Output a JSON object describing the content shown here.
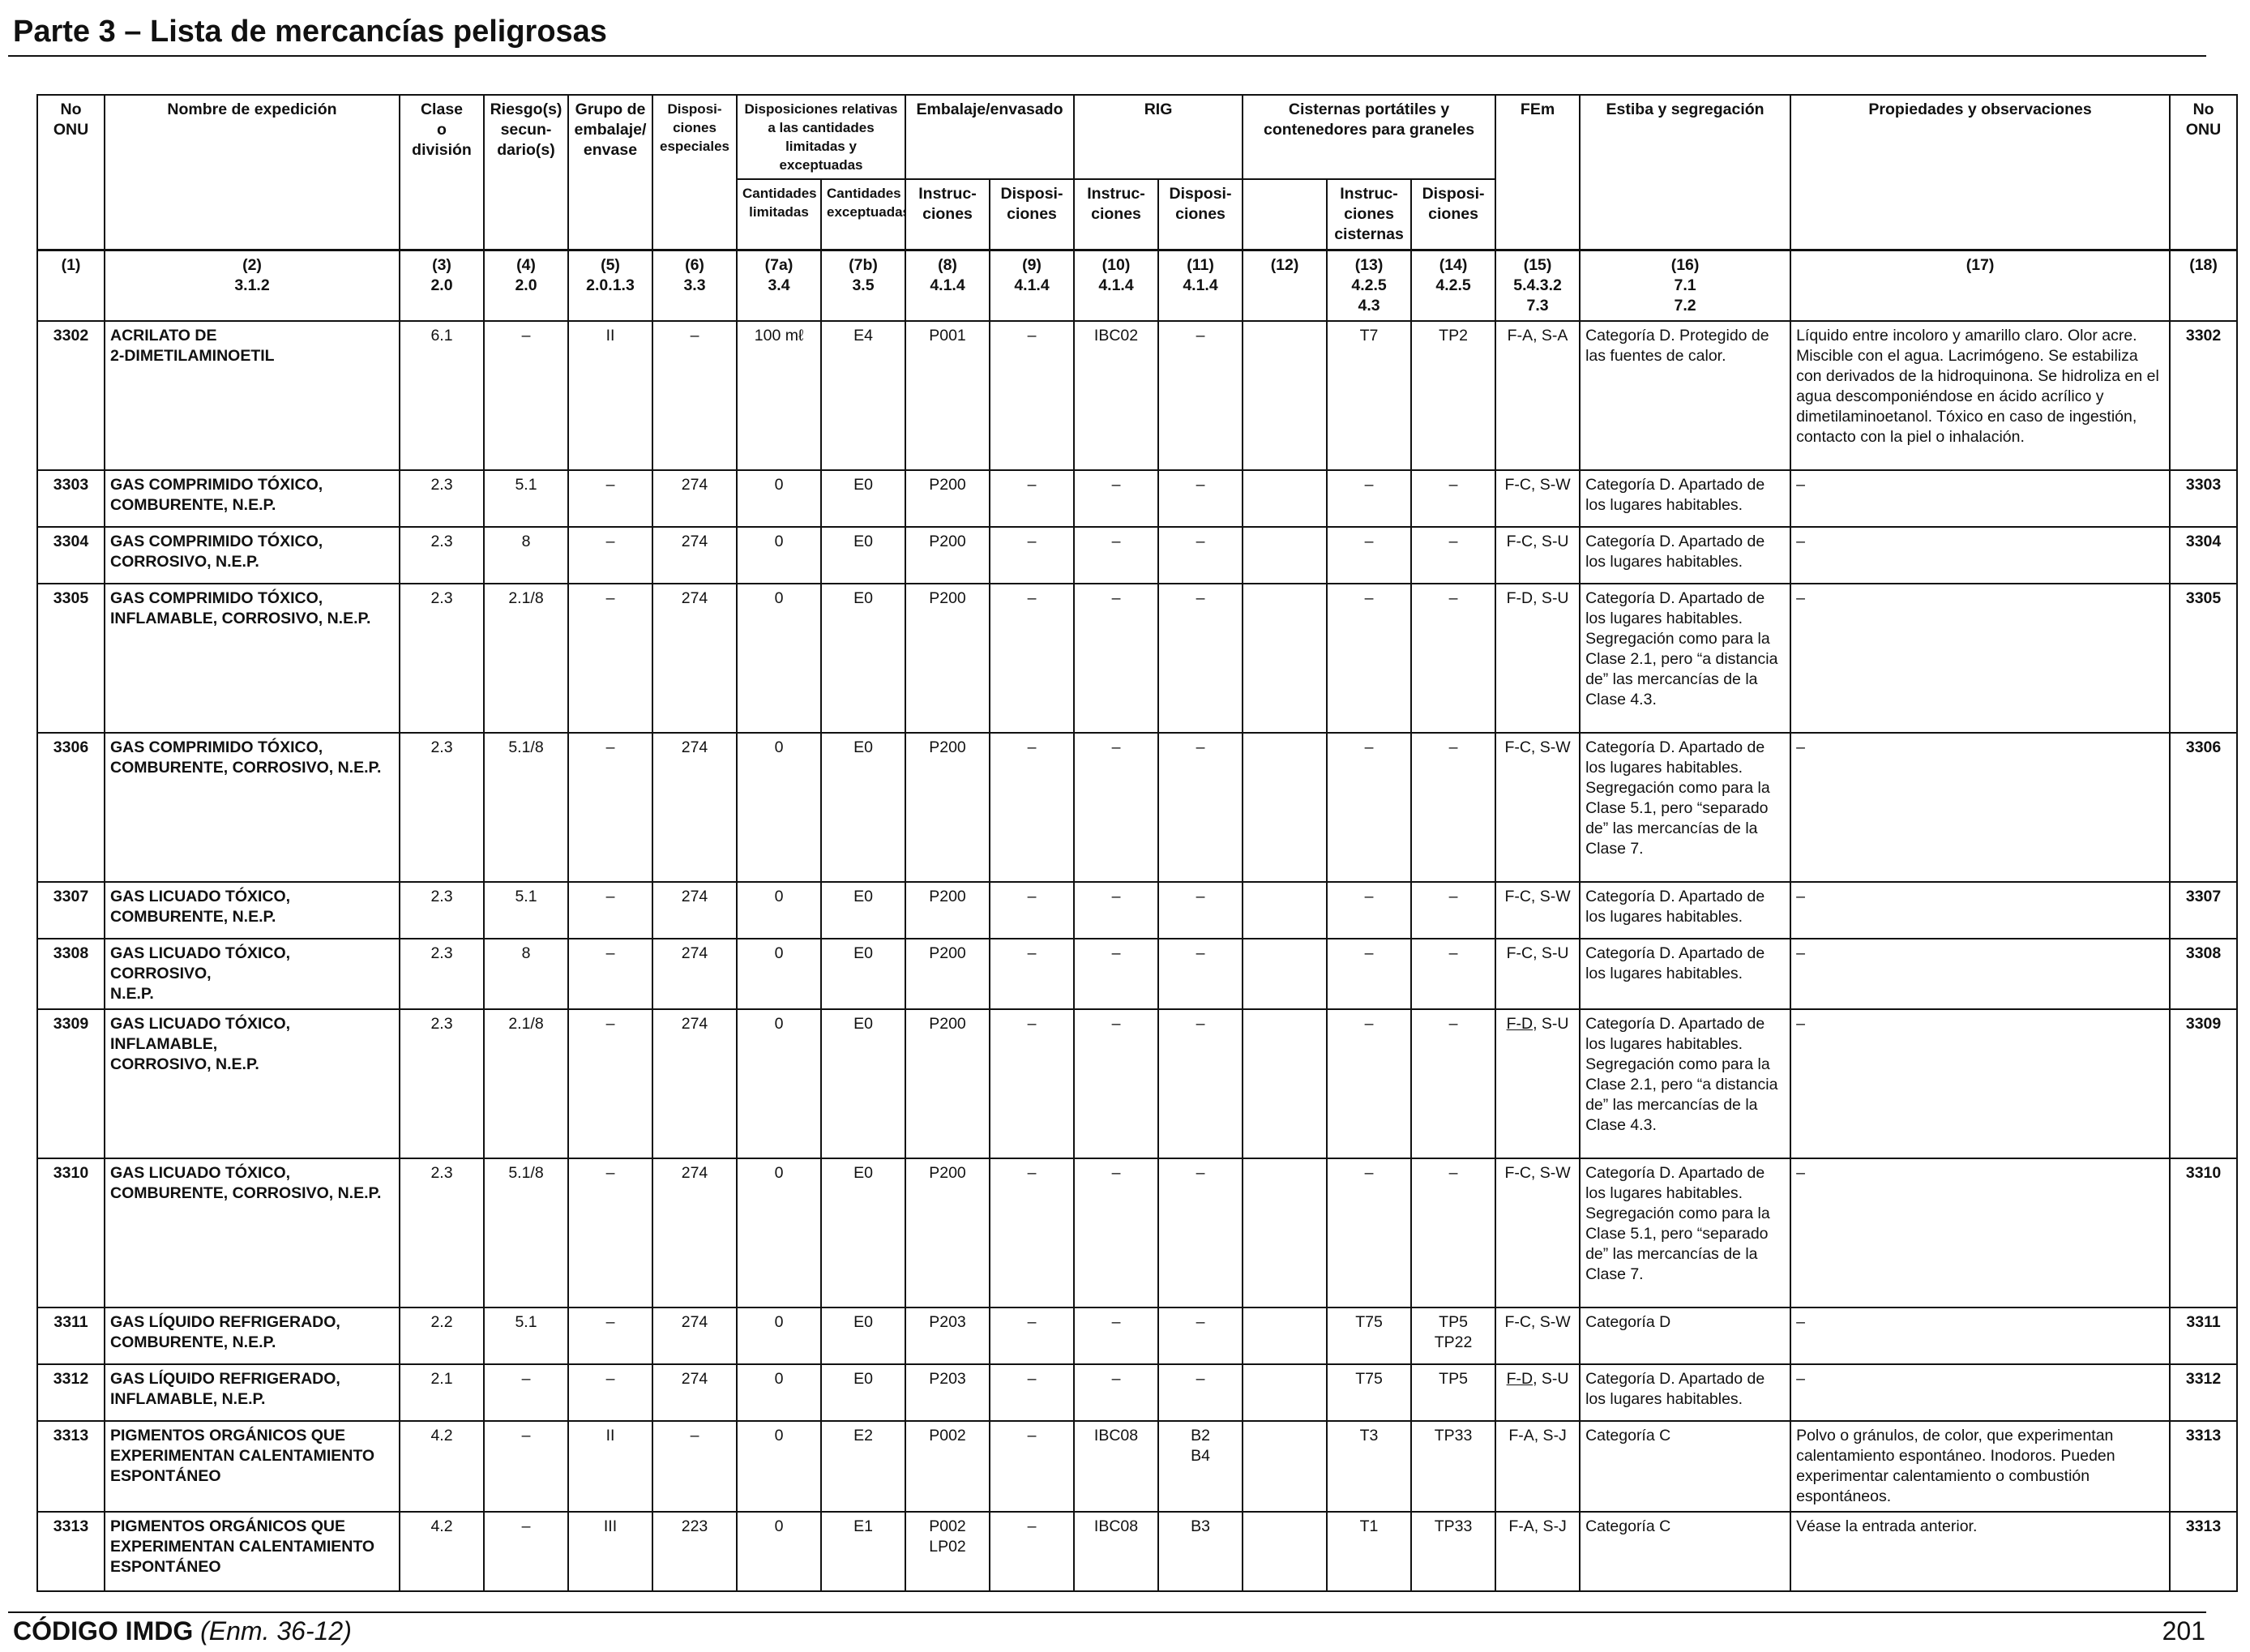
{
  "page_title": "Parte 3 – Lista de mercancías peligrosas",
  "header": {
    "no_onu": "No\nONU",
    "nombre": "Nombre de expedición",
    "clase": "Clase\no\ndivisión",
    "riesgo": "Riesgo(s)\nsecun-\ndario(s)",
    "grupo": "Grupo de\nembalaje/\nenvase",
    "dispo_esp": "Disposi-\nciones\nespeciales",
    "dispo_rel": "Disposiciones relativas\na las cantidades\nlimitadas y exceptuadas",
    "embalaje": "Embalaje/envasado",
    "rig": "RIG",
    "cisternas": "Cisternas portátiles y\ncontenedores para graneles",
    "fem": "FEm",
    "estiba": "Estiba y segregación",
    "propiedades": "Propiedades y observaciones",
    "no_onu_right": "No\nONU",
    "cant_lim": "Cantidades\nlimitadas",
    "cant_exc": "Cantidades\nexceptuadas",
    "emb_instr": "Instruc-\nciones",
    "emb_dispo": "Disposi-\nciones",
    "rig_instr": "Instruc-\nciones",
    "rig_dispo": "Disposi-\nciones",
    "cis_instr": "Instruc-\nciones\ncisternas",
    "cis_dispo": "Disposi-\nciones"
  },
  "column_numbers": [
    "(1)",
    "(2)\n3.1.2",
    "(3)\n2.0",
    "(4)\n2.0",
    "(5)\n2.0.1.3",
    "(6)\n3.3",
    "(7a)\n3.4",
    "(7b)\n3.5",
    "(8)\n4.1.4",
    "(9)\n4.1.4",
    "(10)\n4.1.4",
    "(11)\n4.1.4",
    "(12)",
    "(13)\n4.2.5\n4.3",
    "(14)\n4.2.5",
    "(15)\n5.4.3.2\n7.3",
    "(16)\n7.1\n7.2",
    "(17)",
    "(18)"
  ],
  "rows": [
    {
      "no": "3302",
      "name": "ACRILATO DE\n2-DIMETILAMINOETIL",
      "clase": "6.1",
      "riesgo": "–",
      "grupo": "II",
      "dispo": "–",
      "c7a": "100 mℓ",
      "c7b": "E4",
      "c8": "P001",
      "c9": "–",
      "c10": "IBC02",
      "c11": "–",
      "c12": "",
      "c13": "T7",
      "c14": "TP2",
      "fem": "F-A, S-A",
      "estiba": "Categoría D. Protegido de las fuentes de calor.",
      "prop": "Líquido entre incoloro y amarillo claro. Olor acre. Miscible con el agua. Lacrimógeno. Se estabiliza con derivados de la hidroquinona. Se hidroliza en el agua descomponiéndose en ácido acrílico y dimetilaminoetanol. Tóxico en caso de ingestión, contacto con la piel o inhalación.",
      "no2": "3302"
    },
    {
      "no": "3303",
      "name": "GAS COMPRIMIDO TÓXICO,\nCOMBURENTE, N.E.P.",
      "clase": "2.3",
      "riesgo": "5.1",
      "grupo": "–",
      "dispo": "274",
      "c7a": "0",
      "c7b": "E0",
      "c8": "P200",
      "c9": "–",
      "c10": "–",
      "c11": "–",
      "c12": "",
      "c13": "–",
      "c14": "–",
      "fem": "F-C, S-W",
      "estiba": "Categoría D. Apartado de los lugares habitables.",
      "prop": "–",
      "no2": "3303"
    },
    {
      "no": "3304",
      "name": "GAS COMPRIMIDO TÓXICO,\nCORROSIVO, N.E.P.",
      "clase": "2.3",
      "riesgo": "8",
      "grupo": "–",
      "dispo": "274",
      "c7a": "0",
      "c7b": "E0",
      "c8": "P200",
      "c9": "–",
      "c10": "–",
      "c11": "–",
      "c12": "",
      "c13": "–",
      "c14": "–",
      "fem": "F-C, S-U",
      "estiba": "Categoría D. Apartado de los lugares habitables.",
      "prop": "–",
      "no2": "3304"
    },
    {
      "no": "3305",
      "name": "GAS COMPRIMIDO TÓXICO,\nINFLAMABLE, CORROSIVO, N.E.P.",
      "clase": "2.3",
      "riesgo": "2.1/8",
      "grupo": "–",
      "dispo": "274",
      "c7a": "0",
      "c7b": "E0",
      "c8": "P200",
      "c9": "–",
      "c10": "–",
      "c11": "–",
      "c12": "",
      "c13": "–",
      "c14": "–",
      "fem": "F-D, S-U",
      "estiba": "Categoría D. Apartado de los lugares habitables. Segregación como para la Clase 2.1, pero “a distancia de” las mercancías de la Clase 4.3.",
      "prop": "–",
      "no2": "3305"
    },
    {
      "no": "3306",
      "name": "GAS COMPRIMIDO TÓXICO,\nCOMBURENTE, CORROSIVO, N.E.P.",
      "clase": "2.3",
      "riesgo": "5.1/8",
      "grupo": "–",
      "dispo": "274",
      "c7a": "0",
      "c7b": "E0",
      "c8": "P200",
      "c9": "–",
      "c10": "–",
      "c11": "–",
      "c12": "",
      "c13": "–",
      "c14": "–",
      "fem": "F-C, S-W",
      "estiba": "Categoría D. Apartado de los lugares habitables. Segregación como para la Clase 5.1, pero “separado de” las mercancías de la Clase 7.",
      "prop": "–",
      "no2": "3306"
    },
    {
      "no": "3307",
      "name": "GAS LICUADO TÓXICO,\nCOMBURENTE, N.E.P.",
      "clase": "2.3",
      "riesgo": "5.1",
      "grupo": "–",
      "dispo": "274",
      "c7a": "0",
      "c7b": "E0",
      "c8": "P200",
      "c9": "–",
      "c10": "–",
      "c11": "–",
      "c12": "",
      "c13": "–",
      "c14": "–",
      "fem": "F-C, S-W",
      "estiba": "Categoría D. Apartado de los lugares habitables.",
      "prop": "–",
      "no2": "3307"
    },
    {
      "no": "3308",
      "name": "GAS LICUADO TÓXICO, CORROSIVO,\nN.E.P.",
      "clase": "2.3",
      "riesgo": "8",
      "grupo": "–",
      "dispo": "274",
      "c7a": "0",
      "c7b": "E0",
      "c8": "P200",
      "c9": "–",
      "c10": "–",
      "c11": "–",
      "c12": "",
      "c13": "–",
      "c14": "–",
      "fem": "F-C, S-U",
      "estiba": "Categoría D. Apartado de los lugares habitables.",
      "prop": "–",
      "no2": "3308"
    },
    {
      "no": "3309",
      "name": "GAS LICUADO TÓXICO, INFLAMABLE,\nCORROSIVO, N.E.P.",
      "clase": "2.3",
      "riesgo": "2.1/8",
      "grupo": "–",
      "dispo": "274",
      "c7a": "0",
      "c7b": "E0",
      "c8": "P200",
      "c9": "–",
      "c10": "–",
      "c11": "–",
      "c12": "",
      "c13": "–",
      "c14": "–",
      "fem_u": "F-D",
      "fem_rest": ", S-U",
      "estiba": "Categoría D. Apartado de los lugares habitables. Segregación como para la Clase 2.1, pero “a distancia de” las mercancías de la Clase 4.3.",
      "prop": "–",
      "no2": "3309"
    },
    {
      "no": "3310",
      "name": "GAS LICUADO TÓXICO,\nCOMBURENTE, CORROSIVO, N.E.P.",
      "clase": "2.3",
      "riesgo": "5.1/8",
      "grupo": "–",
      "dispo": "274",
      "c7a": "0",
      "c7b": "E0",
      "c8": "P200",
      "c9": "–",
      "c10": "–",
      "c11": "–",
      "c12": "",
      "c13": "–",
      "c14": "–",
      "fem": "F-C, S-W",
      "estiba": "Categoría D. Apartado de los lugares habitables. Segregación como para la Clase 5.1, pero “separado de” las mercancías de la Clase 7.",
      "prop": "–",
      "no2": "3310"
    },
    {
      "no": "3311",
      "name": "GAS LÍQUIDO REFRIGERADO,\nCOMBURENTE, N.E.P.",
      "clase": "2.2",
      "riesgo": "5.1",
      "grupo": "–",
      "dispo": "274",
      "c7a": "0",
      "c7b": "E0",
      "c8": "P203",
      "c9": "–",
      "c10": "–",
      "c11": "–",
      "c12": "",
      "c13": "T75",
      "c14": "TP5\nTP22",
      "fem": "F-C, S-W",
      "estiba": "Categoría D",
      "prop": "–",
      "no2": "3311"
    },
    {
      "no": "3312",
      "name": "GAS LÍQUIDO REFRIGERADO,\nINFLAMABLE, N.E.P.",
      "clase": "2.1",
      "riesgo": "–",
      "grupo": "–",
      "dispo": "274",
      "c7a": "0",
      "c7b": "E0",
      "c8": "P203",
      "c9": "–",
      "c10": "–",
      "c11": "–",
      "c12": "",
      "c13": "T75",
      "c14": "TP5",
      "fem_u": "F-D",
      "fem_rest": ", S-U",
      "estiba": "Categoría D. Apartado de los lugares habitables.",
      "prop": "–",
      "no2": "3312"
    },
    {
      "no": "3313",
      "name": "PIGMENTOS ORGÁNICOS QUE\nEXPERIMENTAN CALENTAMIENTO\nESPONTÁNEO",
      "clase": "4.2",
      "riesgo": "–",
      "grupo": "II",
      "dispo": "–",
      "c7a": "0",
      "c7b": "E2",
      "c8": "P002",
      "c9": "–",
      "c10": "IBC08",
      "c11": "B2\nB4",
      "c12": "",
      "c13": "T3",
      "c14": "TP33",
      "fem": "F-A, S-J",
      "estiba": "Categoría C",
      "prop": "Polvo o gránulos, de color, que experimentan calentamiento espontáneo. Inodoros. Pueden experimentar calentamiento o combustión espontáneos.",
      "no2": "3313"
    },
    {
      "no": "3313",
      "name": "PIGMENTOS ORGÁNICOS QUE\nEXPERIMENTAN CALENTAMIENTO\nESPONTÁNEO",
      "clase": "4.2",
      "riesgo": "–",
      "grupo": "III",
      "dispo": "223",
      "c7a": "0",
      "c7b": "E1",
      "c8": "P002\nLP02",
      "c9": "–",
      "c10": "IBC08",
      "c11": "B3",
      "c12": "",
      "c13": "T1",
      "c14": "TP33",
      "fem": "F-A, S-J",
      "estiba": "Categoría C",
      "prop": "Véase la entrada anterior.",
      "no2": "3313"
    }
  ],
  "footer": {
    "code": "CÓDIGO IMDG",
    "amendment": "(Enm. 36-12)",
    "page_number": "201"
  }
}
